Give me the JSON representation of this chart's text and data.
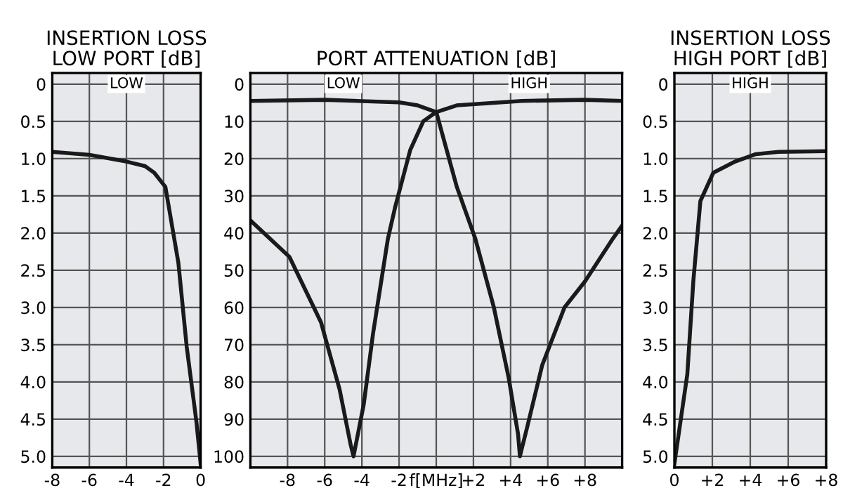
{
  "chart_data": [
    {
      "type": "line",
      "title": "INSERTION LOSS\nLOW PORT [dB]",
      "x": [
        -8,
        -6,
        -4,
        -3,
        -2.5,
        -1.9,
        -1.2,
        -0.75,
        -0.23,
        0
      ],
      "series": [
        {
          "color": "#1a1a1a",
          "values": [
            0.91,
            0.95,
            1.04,
            1.1,
            1.19,
            1.38,
            2.4,
            3.53,
            4.53,
            5.1
          ]
        }
      ],
      "xlim": [
        -8,
        0
      ],
      "xticks": [
        -8,
        -6,
        -4,
        -2,
        0
      ],
      "ylim": [
        5.15,
        -0.15
      ],
      "yticks": [
        0,
        {
          "value": 0.5,
          "label": "0.5"
        },
        {
          "value": 1,
          "label": "1.0"
        },
        {
          "value": 1.5,
          "label": "1.5"
        },
        {
          "value": 2,
          "label": "2.0"
        },
        {
          "value": 2.5,
          "label": "2.5"
        },
        {
          "value": 3,
          "label": "3.0"
        },
        {
          "value": 3.5,
          "label": "3.5"
        },
        {
          "value": 4,
          "label": "4.0"
        },
        {
          "value": 4.5,
          "label": "4.5"
        },
        {
          "value": 5,
          "label": "5.0"
        }
      ],
      "annotations": [
        "LOW"
      ],
      "grid": true,
      "legend": false
    },
    {
      "type": "line",
      "title": "PORT ATTENUATION [dB]",
      "series": [
        {
          "color": "#1a1a1a",
          "x": [
            -10,
            -6,
            -2,
            -1,
            0,
            1.1,
            2.1,
            3.1,
            3.9,
            4.4,
            4.5,
            4.9,
            5.7,
            6.9,
            8,
            9.5,
            10
          ],
          "values": [
            4.5,
            4.2,
            4.9,
            5.7,
            7.5,
            27.5,
            41.5,
            60,
            79,
            94,
            100,
            92,
            75.5,
            60,
            53,
            41.5,
            38
          ]
        },
        {
          "color": "#1a1a1a",
          "x": [
            -10,
            -7.9,
            -6.2,
            -5.2,
            -4.6,
            -4.45,
            -3.9,
            -3.4,
            -2.6,
            -2.2,
            -1.4,
            -0.7,
            0,
            1.1,
            4.6,
            8,
            10
          ],
          "values": [
            36.6,
            46.4,
            64,
            82,
            97,
            100,
            86,
            67,
            41.5,
            32.8,
            17.7,
            10,
            7.5,
            5.7,
            4.5,
            4.2,
            4.5
          ]
        }
      ],
      "xlim": [
        -10,
        10
      ],
      "xticks": [
        -8,
        -6,
        -4,
        -2,
        {
          "value": 0,
          "label": "f[MHz]"
        },
        {
          "value": 2,
          "label": "+2"
        },
        {
          "value": 4,
          "label": "+4"
        },
        {
          "value": 6,
          "label": "+6"
        },
        {
          "value": 8,
          "label": "+8"
        }
      ],
      "ylim": [
        103,
        -3
      ],
      "yticks": [
        0,
        10,
        20,
        30,
        40,
        50,
        60,
        70,
        80,
        90,
        100
      ],
      "annotations": [
        "LOW",
        "HIGH"
      ],
      "grid": true,
      "legend": false
    },
    {
      "type": "line",
      "title": "INSERTION LOSS\nHIGH PORT [dB]",
      "x": [
        0,
        0.68,
        1.0,
        1.37,
        2.05,
        3.2,
        4.3,
        5.5,
        8
      ],
      "series": [
        {
          "color": "#1a1a1a",
          "values": [
            5.1,
            3.9,
            2.64,
            1.57,
            1.19,
            1.04,
            0.94,
            0.91,
            0.9
          ]
        }
      ],
      "xlim": [
        0,
        8
      ],
      "xticks": [
        0,
        {
          "value": 2,
          "label": "+2"
        },
        {
          "value": 4,
          "label": "+4"
        },
        {
          "value": 6,
          "label": "+6"
        },
        {
          "value": 8,
          "label": "+8"
        }
      ],
      "ylim": [
        5.15,
        -0.15
      ],
      "yticks": [
        0,
        {
          "value": 0.5,
          "label": "0.5"
        },
        {
          "value": 1,
          "label": "1.0"
        },
        {
          "value": 1.5,
          "label": "1.5"
        },
        {
          "value": 2,
          "label": "2.0"
        },
        {
          "value": 2.5,
          "label": "2.5"
        },
        {
          "value": 3,
          "label": "3.0"
        },
        {
          "value": 3.5,
          "label": "3.5"
        },
        {
          "value": 4,
          "label": "4.0"
        },
        {
          "value": 4.5,
          "label": "4.5"
        },
        {
          "value": 5,
          "label": "5.0"
        }
      ],
      "annotations": [
        "HIGH"
      ],
      "grid": true,
      "legend": false
    }
  ]
}
